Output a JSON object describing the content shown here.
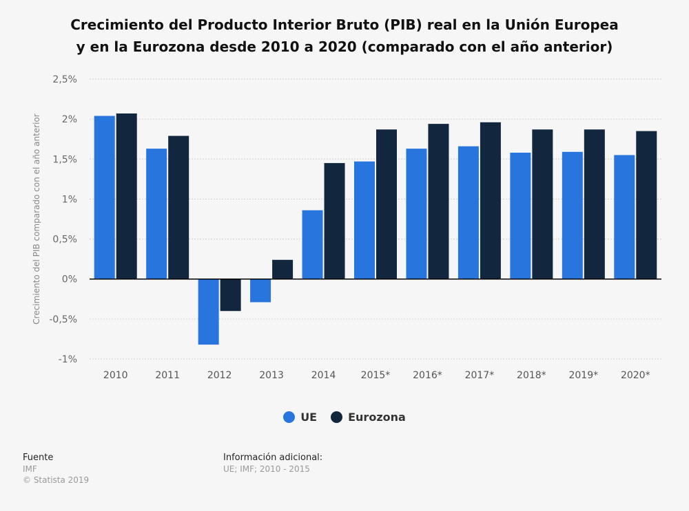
{
  "title_line1": "Crecimiento del Producto Interior Bruto (PIB) real en la Unión Europea",
  "title_line2": "y en la Eurozona desde 2010 a 2020 (comparado con el año anterior)",
  "chart_data": {
    "type": "bar",
    "ylabel": "Crecimiento del PIB comparado con el año anterior",
    "xlabel": "",
    "ylim": [
      -1,
      2.5
    ],
    "yticks": [
      {
        "v": 2.5,
        "label": "2,5%"
      },
      {
        "v": 2,
        "label": "2%"
      },
      {
        "v": 1.5,
        "label": "1,5%"
      },
      {
        "v": 1,
        "label": "1%"
      },
      {
        "v": 0.5,
        "label": "0,5%"
      },
      {
        "v": 0,
        "label": "0%"
      },
      {
        "v": -0.5,
        "label": "-0,5%"
      },
      {
        "v": -1,
        "label": "-1%"
      }
    ],
    "grid": true,
    "legend_position": "bottom",
    "categories": [
      "2010",
      "2011",
      "2012",
      "2013",
      "2014",
      "2015*",
      "2016*",
      "2017*",
      "2018*",
      "2019*",
      "2020*"
    ],
    "series": [
      {
        "name": "UE",
        "color": "#2876dd",
        "values": [
          2.04,
          1.63,
          -0.82,
          -0.29,
          0.86,
          1.47,
          1.63,
          1.66,
          1.58,
          1.59,
          1.55
        ]
      },
      {
        "name": "Eurozona",
        "color": "#12273d",
        "values": [
          2.07,
          1.79,
          -0.4,
          0.24,
          1.45,
          1.87,
          1.94,
          1.96,
          1.87,
          1.87,
          1.85
        ]
      }
    ]
  },
  "source": {
    "label": "Fuente",
    "value": "IMF",
    "copyright": "© Statista 2019"
  },
  "info": {
    "label": "Información adicional:",
    "value": "UE; IMF; 2010 - 2015"
  }
}
